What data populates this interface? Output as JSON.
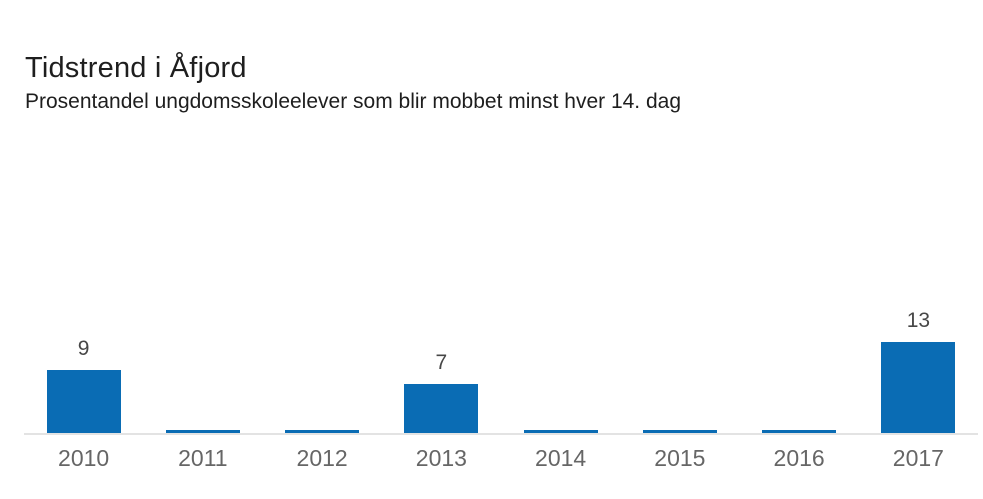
{
  "header": {
    "title": "Tidstrend i Åfjord",
    "subtitle": "Prosentandel ungdomsskoleelever som blir mobbet minst hver 14. dag"
  },
  "chart_data": {
    "type": "bar",
    "title": "Tidstrend i Åfjord",
    "subtitle": "Prosentandel ungdomsskoleelever som blir mobbet minst hver 14. dag",
    "categories": [
      "2010",
      "2011",
      "2012",
      "2013",
      "2014",
      "2015",
      "2016",
      "2017"
    ],
    "values": [
      9,
      0,
      0,
      7,
      0,
      0,
      0,
      13
    ],
    "value_labels": [
      "9",
      "",
      "",
      "7",
      "",
      "",
      "",
      "13"
    ],
    "xlabel": "",
    "ylabel": "",
    "ylim": [
      0,
      14
    ],
    "grid": false,
    "legend": false,
    "colors": {
      "bar": "#0a6cb4",
      "axis_line": "#e3e3e3",
      "value_label": "#474747",
      "tick_label": "#666666",
      "title": "#1e1e1e"
    }
  }
}
